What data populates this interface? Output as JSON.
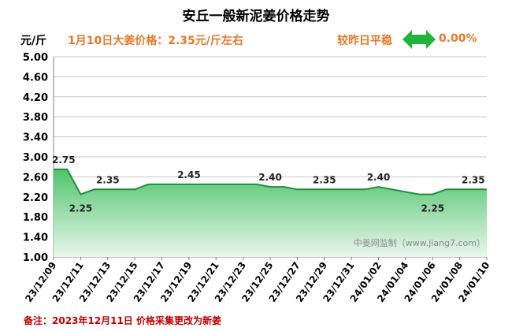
{
  "title": "安丘一般新泥姜价格走势",
  "unit": "元/斤",
  "price_note": "1月10日大姜价格：2.35元/斤左右",
  "compare_text": "较昨日平稳",
  "change_text": "0.00%",
  "watermark": "中姜网监制（www.jiang7.com）",
  "footer": "备注：2023年12月11日 价格采集更改为新姜",
  "colors": {
    "line": "#1f8f3a",
    "fill_top": "#4fc46c",
    "fill_bottom": "#e9f7ec",
    "accent": "#e8782a",
    "arrow": "#1fb53c"
  },
  "chart_data": {
    "type": "area",
    "title": "安丘一般新泥姜价格走势",
    "ylabel": "元/斤",
    "ylim": [
      1.0,
      5.0
    ],
    "y_ticks": [
      "5.00",
      "4.60",
      "4.20",
      "3.80",
      "3.40",
      "3.00",
      "2.60",
      "2.20",
      "1.80",
      "1.40",
      "1.00"
    ],
    "x_tick_labels": [
      "23/12/09",
      "23/12/11",
      "23/12/13",
      "23/12/15",
      "23/12/17",
      "23/12/19",
      "23/12/21",
      "23/12/23",
      "23/12/25",
      "23/12/27",
      "23/12/29",
      "23/12/31",
      "24/01/02",
      "24/01/04",
      "24/01/06",
      "24/01/08",
      "24/01/10"
    ],
    "x": [
      "23/12/09",
      "23/12/10",
      "23/12/11",
      "23/12/12",
      "23/12/13",
      "23/12/14",
      "23/12/15",
      "23/12/16",
      "23/12/17",
      "23/12/18",
      "23/12/19",
      "23/12/20",
      "23/12/21",
      "23/12/22",
      "23/12/23",
      "23/12/24",
      "23/12/25",
      "23/12/26",
      "23/12/27",
      "23/12/28",
      "23/12/29",
      "23/12/30",
      "23/12/31",
      "24/01/01",
      "24/01/02",
      "24/01/03",
      "24/01/04",
      "24/01/05",
      "24/01/06",
      "24/01/07",
      "24/01/08",
      "24/01/09",
      "24/01/10"
    ],
    "values": [
      2.75,
      2.75,
      2.25,
      2.35,
      2.35,
      2.35,
      2.35,
      2.45,
      2.45,
      2.45,
      2.45,
      2.45,
      2.45,
      2.45,
      2.45,
      2.45,
      2.4,
      2.4,
      2.35,
      2.35,
      2.35,
      2.35,
      2.35,
      2.35,
      2.4,
      2.35,
      2.3,
      2.25,
      2.25,
      2.35,
      2.35,
      2.35,
      2.35
    ],
    "data_labels": [
      {
        "index": 0,
        "text": "2.75",
        "pos": "above"
      },
      {
        "index": 2,
        "text": "2.25",
        "pos": "below"
      },
      {
        "index": 4,
        "text": "2.35",
        "pos": "above"
      },
      {
        "index": 10,
        "text": "2.45",
        "pos": "above"
      },
      {
        "index": 16,
        "text": "2.40",
        "pos": "above"
      },
      {
        "index": 20,
        "text": "2.35",
        "pos": "above"
      },
      {
        "index": 24,
        "text": "2.40",
        "pos": "above"
      },
      {
        "index": 28,
        "text": "2.25",
        "pos": "below"
      },
      {
        "index": 31,
        "text": "2.35",
        "pos": "above"
      }
    ],
    "grid": true
  }
}
